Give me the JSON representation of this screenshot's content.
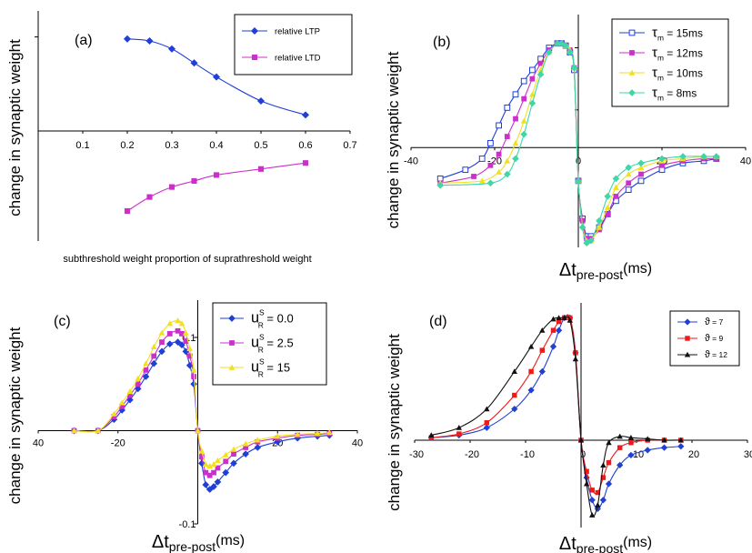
{
  "chart_data": [
    {
      "type": "line",
      "panel_label": "(a)",
      "ylabel": "change in synaptic weight",
      "xlabel": "subthreshold weight proportion of suprathreshold weight",
      "xlim": [
        0,
        0.7
      ],
      "ylim": [
        -0.55,
        0.6
      ],
      "x_ticks": [
        "0.1",
        "0.2",
        "0.3",
        "0.4",
        "0.5",
        "0.6",
        "0.7"
      ],
      "legend_position": "top-right",
      "series": [
        {
          "name": "relative LTP",
          "color": "#1f3fd6",
          "marker": "diamond",
          "x": [
            0.2,
            0.25,
            0.3,
            0.35,
            0.4,
            0.5,
            0.6
          ],
          "y": [
            0.46,
            0.45,
            0.41,
            0.34,
            0.27,
            0.15,
            0.08
          ]
        },
        {
          "name": "relative LTD",
          "color": "#cc2fcc",
          "marker": "square",
          "x": [
            0.2,
            0.25,
            0.3,
            0.35,
            0.4,
            0.5,
            0.6
          ],
          "y": [
            -0.4,
            -0.33,
            -0.28,
            -0.25,
            -0.22,
            -0.19,
            -0.16
          ]
        }
      ]
    },
    {
      "type": "line",
      "panel_label": "(b)",
      "ylabel": "change in synaptic weight",
      "xlabel_main": "Δt",
      "xlabel_sub": "pre-post",
      "xlabel_unit": "(ms)",
      "xlim": [
        -40,
        40
      ],
      "ylim": [
        -0.45,
        0.6
      ],
      "x_ticks": [
        "-40",
        "-20",
        "0",
        "20",
        "40"
      ],
      "legend_position": "top-right",
      "series": [
        {
          "name_sym": "τ",
          "name_sub": "m",
          "name_rest": "= 15ms",
          "color": "#1f3fd6",
          "marker": "open-square",
          "x": [
            -33,
            -27,
            -23,
            -21,
            -19,
            -17,
            -15,
            -13,
            -11,
            -9,
            -7,
            -5,
            -4,
            -3,
            -2,
            -1,
            0,
            1,
            2,
            3,
            5,
            7,
            9,
            12,
            15,
            20,
            25,
            30,
            33
          ],
          "y": [
            -0.14,
            -0.1,
            -0.05,
            0.02,
            0.1,
            0.18,
            0.24,
            0.3,
            0.35,
            0.4,
            0.45,
            0.47,
            0.47,
            0.46,
            0.43,
            0.35,
            -0.15,
            -0.32,
            -0.4,
            -0.4,
            -0.36,
            -0.3,
            -0.24,
            -0.19,
            -0.15,
            -0.1,
            -0.07,
            -0.06,
            -0.05
          ]
        },
        {
          "name_sym": "τ",
          "name_sub": "m",
          "name_rest": "= 12ms",
          "color": "#cc2fcc",
          "marker": "square",
          "x": [
            -33,
            -25,
            -21,
            -19,
            -17,
            -15,
            -13,
            -11,
            -9,
            -7,
            -5,
            -4,
            -3,
            -2,
            -1,
            0,
            1,
            2,
            3,
            5,
            7,
            9,
            12,
            15,
            20,
            25,
            30,
            33
          ],
          "y": [
            -0.16,
            -0.13,
            -0.08,
            -0.03,
            0.05,
            0.13,
            0.22,
            0.31,
            0.38,
            0.44,
            0.47,
            0.47,
            0.46,
            0.44,
            0.36,
            -0.15,
            -0.33,
            -0.41,
            -0.41,
            -0.37,
            -0.3,
            -0.22,
            -0.16,
            -0.12,
            -0.08,
            -0.06,
            -0.05,
            -0.05
          ]
        },
        {
          "name_sym": "τ",
          "name_sub": "m",
          "name_rest": "= 10ms",
          "color": "#f2e020",
          "marker": "triangle",
          "x": [
            -33,
            -23,
            -19,
            -17,
            -15,
            -13,
            -11,
            -9,
            -7,
            -5,
            -4,
            -3,
            -2,
            -1,
            0,
            1,
            2,
            3,
            5,
            7,
            9,
            12,
            15,
            20,
            25,
            30,
            33
          ],
          "y": [
            -0.16,
            -0.15,
            -0.11,
            -0.06,
            0.02,
            0.12,
            0.24,
            0.35,
            0.43,
            0.47,
            0.47,
            0.46,
            0.44,
            0.36,
            -0.15,
            -0.35,
            -0.42,
            -0.42,
            -0.36,
            -0.27,
            -0.18,
            -0.12,
            -0.09,
            -0.06,
            -0.05,
            -0.04,
            -0.04
          ]
        },
        {
          "name_sym": "τ",
          "name_sub": "m",
          "name_rest": "= 8ms",
          "color": "#3fd6a8",
          "marker": "diamond",
          "x": [
            -33,
            -21,
            -17,
            -15,
            -13,
            -11,
            -9,
            -7,
            -5,
            -4,
            -3,
            -2,
            -1,
            0,
            1,
            2,
            3,
            5,
            7,
            9,
            12,
            15,
            20,
            25,
            30,
            33
          ],
          "y": [
            -0.17,
            -0.16,
            -0.12,
            -0.05,
            0.06,
            0.2,
            0.33,
            0.43,
            0.47,
            0.47,
            0.46,
            0.43,
            0.36,
            -0.15,
            -0.36,
            -0.43,
            -0.42,
            -0.33,
            -0.22,
            -0.14,
            -0.09,
            -0.07,
            -0.05,
            -0.04,
            -0.04,
            -0.04
          ]
        }
      ]
    },
    {
      "type": "line",
      "panel_label": "(c)",
      "ylabel": "change in synaptic weight",
      "xlabel_main": "Δt",
      "xlabel_sub": "pre-post",
      "xlabel_unit": "(ms)",
      "xlim": [
        -40,
        40
      ],
      "ylim": [
        -0.1,
        0.14
      ],
      "x_ticks": [
        "40",
        "-20",
        "20",
        "40"
      ],
      "y_ticks": [
        "0.1",
        "-0.1"
      ],
      "legend_position": "top-right",
      "series": [
        {
          "name_sym": "u",
          "name_sup": "S",
          "name_sub": "R",
          "name_rest": "= 0.0",
          "color": "#1f3fd6",
          "marker": "diamond",
          "x": [
            -31,
            -25,
            -21,
            -19,
            -17,
            -15,
            -13,
            -11,
            -9,
            -7,
            -5,
            -4,
            -3,
            -2,
            -1,
            0,
            1,
            2,
            3,
            4,
            5,
            7,
            9,
            12,
            15,
            20,
            25,
            30,
            33
          ],
          "y": [
            0.0,
            0.0,
            0.012,
            0.022,
            0.033,
            0.045,
            0.058,
            0.072,
            0.085,
            0.093,
            0.095,
            0.092,
            0.085,
            0.07,
            0.05,
            0.0,
            -0.035,
            -0.058,
            -0.063,
            -0.06,
            -0.055,
            -0.045,
            -0.035,
            -0.025,
            -0.018,
            -0.012,
            -0.008,
            -0.006,
            -0.005
          ]
        },
        {
          "name_sym": "u",
          "name_sup": "S",
          "name_sub": "R",
          "name_rest": "= 2.5",
          "color": "#cc2fcc",
          "marker": "square",
          "x": [
            -31,
            -25,
            -21,
            -19,
            -17,
            -15,
            -13,
            -11,
            -9,
            -7,
            -5,
            -4,
            -3,
            -2,
            -1,
            0,
            1,
            2,
            3,
            4,
            5,
            7,
            9,
            12,
            15,
            20,
            25,
            30,
            33
          ],
          "y": [
            0.0,
            0.0,
            0.015,
            0.026,
            0.038,
            0.05,
            0.065,
            0.08,
            0.095,
            0.104,
            0.107,
            0.104,
            0.096,
            0.08,
            0.058,
            0.0,
            -0.028,
            -0.045,
            -0.048,
            -0.045,
            -0.04,
            -0.033,
            -0.025,
            -0.018,
            -0.012,
            -0.008,
            -0.005,
            -0.004,
            -0.003
          ]
        },
        {
          "name_sym": "u",
          "name_sup": "S",
          "name_sub": "R",
          "name_rest": "= 15",
          "color": "#f2e020",
          "marker": "triangle",
          "x": [
            -31,
            -25,
            -21,
            -19,
            -17,
            -15,
            -13,
            -11,
            -9,
            -7,
            -5,
            -4,
            -3,
            -2,
            -1,
            0,
            1,
            2,
            3,
            4,
            5,
            7,
            9,
            12,
            15,
            20,
            25,
            30,
            33
          ],
          "y": [
            0.0,
            0.0,
            0.018,
            0.03,
            0.042,
            0.056,
            0.072,
            0.09,
            0.105,
            0.115,
            0.118,
            0.115,
            0.105,
            0.088,
            0.065,
            0.0,
            -0.022,
            -0.036,
            -0.038,
            -0.036,
            -0.032,
            -0.026,
            -0.02,
            -0.014,
            -0.01,
            -0.006,
            -0.004,
            -0.003,
            -0.002
          ]
        }
      ]
    },
    {
      "type": "line",
      "panel_label": "(d)",
      "ylabel": "change in synaptic weight",
      "xlabel_main": "Δt",
      "xlabel_sub": "pre-post",
      "xlabel_unit": "(ms)",
      "xlim": [
        -30,
        30
      ],
      "ylim": [
        -0.7,
        1.1
      ],
      "x_ticks": [
        "-30",
        "-20",
        "-10",
        "0",
        "10",
        "20",
        "30"
      ],
      "legend_position": "top-right",
      "series": [
        {
          "name_sym": "ϑ",
          "name_rest": "= 7",
          "color": "#1f3fd6",
          "marker": "diamond",
          "x": [
            -27,
            -22,
            -17,
            -12,
            -9,
            -7,
            -5,
            -4,
            -3,
            -2,
            -1,
            0,
            1,
            2,
            3,
            4,
            5,
            7,
            9,
            12,
            15,
            18
          ],
          "y": [
            0.02,
            0.04,
            0.1,
            0.25,
            0.4,
            0.55,
            0.75,
            0.88,
            0.98,
            0.98,
            0.7,
            0.0,
            -0.3,
            -0.48,
            -0.55,
            -0.48,
            -0.35,
            -0.2,
            -0.12,
            -0.08,
            -0.06,
            -0.05
          ]
        },
        {
          "name_sym": "ϑ",
          "name_rest": "= 9",
          "color": "#ee1a1a",
          "marker": "square",
          "x": [
            -27,
            -22,
            -17,
            -12,
            -9,
            -7,
            -5,
            -4,
            -3,
            -2,
            -1,
            0,
            1,
            2,
            3,
            4,
            5,
            7,
            9,
            12,
            15,
            18
          ],
          "y": [
            0.02,
            0.05,
            0.14,
            0.36,
            0.55,
            0.72,
            0.88,
            0.95,
            0.98,
            0.98,
            0.7,
            0.0,
            -0.25,
            -0.4,
            -0.42,
            -0.3,
            -0.18,
            -0.06,
            -0.02,
            0.0,
            0.0,
            0.0
          ]
        },
        {
          "name_sym": "ϑ",
          "name_rest": "= 12",
          "color": "#111111",
          "marker": "triangle",
          "x": [
            -27,
            -22,
            -17,
            -12,
            -9,
            -7,
            -5,
            -4,
            -3,
            -2,
            -1,
            0,
            1,
            2,
            3,
            4,
            5,
            7,
            9,
            12,
            15,
            18
          ],
          "y": [
            0.04,
            0.1,
            0.25,
            0.55,
            0.75,
            0.88,
            0.97,
            0.98,
            0.98,
            0.96,
            0.65,
            0.0,
            -0.35,
            -0.6,
            -0.52,
            -0.2,
            -0.02,
            0.03,
            0.02,
            0.01,
            0.0,
            0.0
          ]
        }
      ]
    }
  ]
}
